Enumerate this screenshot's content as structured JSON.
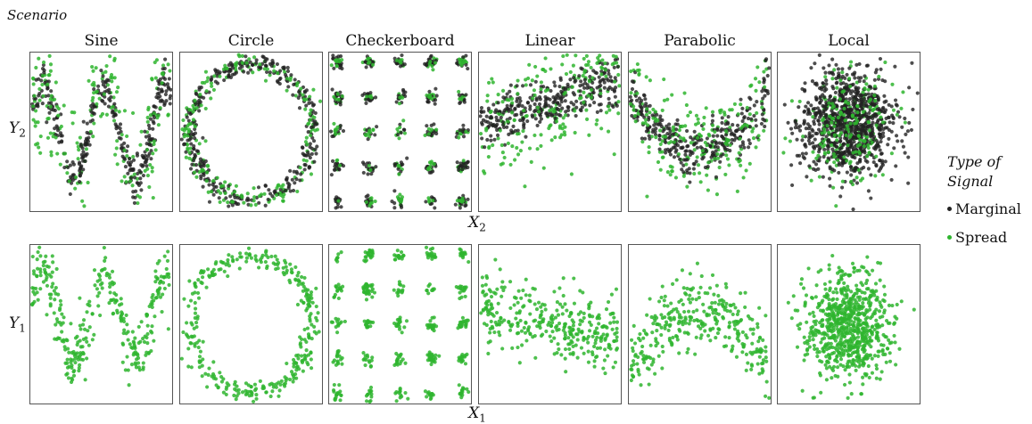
{
  "header": "Scenario",
  "scenarios": [
    "Sine",
    "Circle",
    "Checkerboard",
    "Linear",
    "Parabolic",
    "Local"
  ],
  "row_labels": {
    "top": "Y",
    "top_sub": "2",
    "bottom": "Y",
    "bottom_sub": "1"
  },
  "x_labels": {
    "top": "X",
    "top_sub": "2",
    "bottom": "X",
    "bottom_sub": "1"
  },
  "legend": {
    "title": "Type of Signal",
    "items": [
      {
        "label": "Marginal",
        "color": "#222222"
      },
      {
        "label": "Spread",
        "color": "#2fb52f"
      }
    ]
  },
  "colors": {
    "marginal": "#222222",
    "spread": "#2fb52f"
  },
  "chart_data": {
    "type": "scatter",
    "description_of_grid": "2 rows x 6 columns of scatter panels",
    "rows": [
      {
        "y_variable": "Y2",
        "x_variable": "X2",
        "series": [
          "Marginal",
          "Spread"
        ]
      },
      {
        "y_variable": "Y1",
        "x_variable": "X1",
        "series": [
          "Spread"
        ]
      }
    ],
    "columns": [
      "Sine",
      "Circle",
      "Checkerboard",
      "Linear",
      "Parabolic",
      "Local"
    ],
    "axis_ticks": "none",
    "grid": false,
    "legend_position": "right"
  }
}
